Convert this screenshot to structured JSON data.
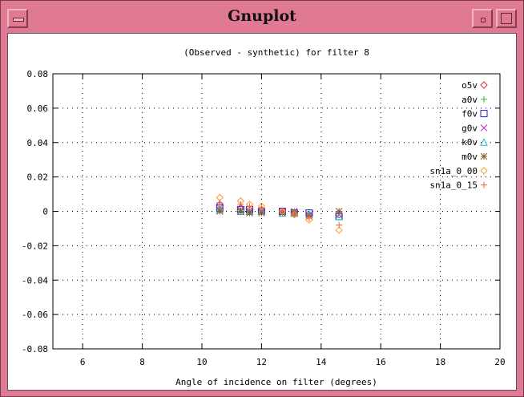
{
  "window": {
    "title": "Gnuplot"
  },
  "chart_data": {
    "type": "scatter",
    "title": "(Observed - synthetic) for filter 8",
    "xlabel": "Angle of incidence on filter (degrees)",
    "ylabel": "",
    "xlim": [
      5,
      20
    ],
    "ylim": [
      -0.08,
      0.08
    ],
    "xticks": [
      6,
      8,
      10,
      12,
      14,
      16,
      18,
      20
    ],
    "yticks": [
      0.08,
      0.06,
      0.04,
      0.02,
      0,
      -0.02,
      -0.04,
      -0.06,
      -0.08
    ],
    "grid": true,
    "legend_position": "top-right",
    "series": [
      {
        "name": "o5v",
        "color": "#e0303c",
        "marker": "diamond",
        "points": [
          [
            10.6,
            0.004
          ],
          [
            11.3,
            0.002
          ],
          [
            11.6,
            0.001
          ],
          [
            12.0,
            0.001
          ],
          [
            12.7,
            0.0
          ],
          [
            13.1,
            -0.001
          ],
          [
            13.6,
            -0.002
          ],
          [
            14.6,
            -0.002
          ]
        ]
      },
      {
        "name": "a0v",
        "color": "#22c022",
        "marker": "plus",
        "points": [
          [
            10.6,
            0.002
          ],
          [
            11.3,
            0.001
          ],
          [
            11.6,
            0.0
          ],
          [
            12.0,
            0.001
          ],
          [
            12.7,
            0.0
          ],
          [
            13.1,
            0.0
          ],
          [
            13.6,
            -0.001
          ],
          [
            14.6,
            0.0
          ]
        ]
      },
      {
        "name": "f0v",
        "color": "#2020d0",
        "marker": "square",
        "points": [
          [
            10.6,
            0.002
          ],
          [
            11.3,
            0.001
          ],
          [
            11.6,
            0.001
          ],
          [
            12.0,
            0.0
          ],
          [
            12.7,
            0.0
          ],
          [
            13.1,
            -0.001
          ],
          [
            13.6,
            -0.001
          ],
          [
            14.6,
            -0.003
          ]
        ]
      },
      {
        "name": "g0v",
        "color": "#d020d0",
        "marker": "cross",
        "points": [
          [
            10.6,
            0.001
          ],
          [
            11.3,
            0.001
          ],
          [
            11.6,
            0.0
          ],
          [
            12.0,
            0.0
          ],
          [
            12.7,
            0.0
          ],
          [
            13.1,
            0.0
          ],
          [
            13.6,
            -0.002
          ],
          [
            14.6,
            -0.002
          ]
        ]
      },
      {
        "name": "k0v",
        "color": "#20b8c0",
        "marker": "triangle",
        "points": [
          [
            10.6,
            0.001
          ],
          [
            11.3,
            0.0
          ],
          [
            11.6,
            0.0
          ],
          [
            12.0,
            0.0
          ],
          [
            12.7,
            -0.001
          ],
          [
            13.1,
            -0.001
          ],
          [
            13.6,
            -0.002
          ],
          [
            14.6,
            -0.003
          ]
        ]
      },
      {
        "name": "m0v",
        "color": "#8a5a2a",
        "marker": "star",
        "points": [
          [
            10.6,
            0.0
          ],
          [
            11.3,
            0.0
          ],
          [
            11.6,
            -0.001
          ],
          [
            12.0,
            -0.001
          ],
          [
            12.7,
            -0.001
          ],
          [
            13.1,
            -0.001
          ],
          [
            13.6,
            -0.003
          ],
          [
            14.6,
            0.0
          ]
        ]
      },
      {
        "name": "sn1a_0_00",
        "color": "#f0a020",
        "marker": "diamond",
        "points": [
          [
            10.6,
            0.008
          ],
          [
            11.3,
            0.006
          ],
          [
            11.6,
            0.004
          ],
          [
            12.0,
            0.003
          ],
          [
            12.7,
            0.0
          ],
          [
            13.1,
            -0.002
          ],
          [
            13.6,
            -0.005
          ],
          [
            14.6,
            -0.011
          ]
        ]
      },
      {
        "name": "sn1a_0_15",
        "color": "#f06040",
        "marker": "plus",
        "points": [
          [
            10.6,
            0.005
          ],
          [
            11.3,
            0.004
          ],
          [
            11.6,
            0.003
          ],
          [
            12.0,
            0.002
          ],
          [
            12.7,
            0.0
          ],
          [
            13.1,
            -0.001
          ],
          [
            13.6,
            -0.004
          ],
          [
            14.6,
            -0.008
          ]
        ]
      }
    ]
  }
}
